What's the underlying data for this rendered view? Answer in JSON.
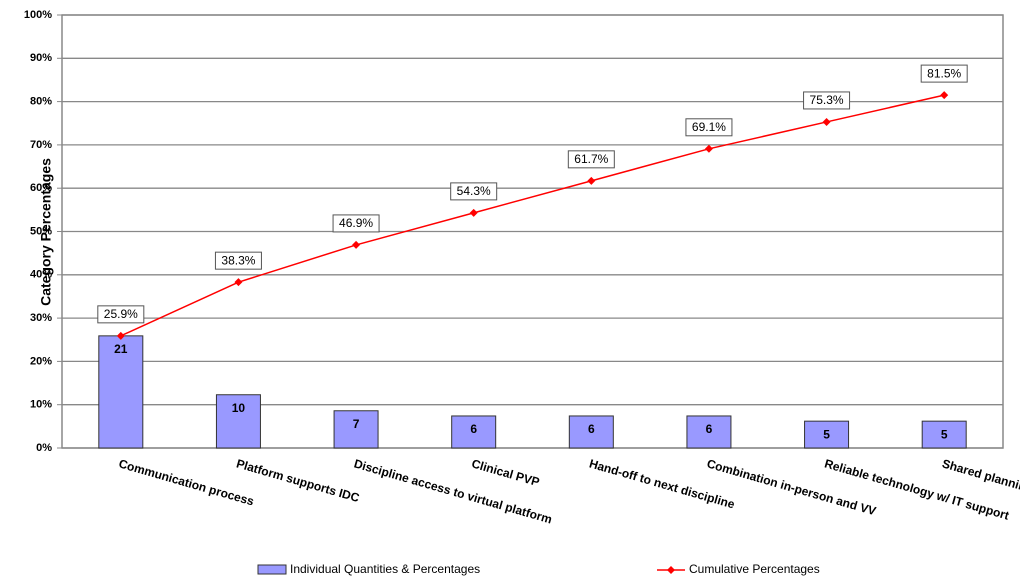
{
  "chart_data": {
    "type": "pareto",
    "y_label": "Category Percentages",
    "categories": [
      "Communication process",
      "Platform supports IDC",
      "Discipline access to virtual platform",
      "Clinical PVP",
      "Hand-off to next discipline",
      "Combination in-person and VV",
      "Reliable technology w/ IT support",
      "Shared planning form"
    ],
    "series": [
      {
        "name": "Individual Quantities & Percentages",
        "color": "#9999ff",
        "values": [
          25.9,
          12.3,
          8.6,
          7.4,
          7.4,
          7.4,
          6.2,
          6.2
        ],
        "counts": [
          21,
          10,
          7,
          6,
          6,
          6,
          5,
          5
        ]
      },
      {
        "name": "Cumulative Percentages",
        "color": "#ff0000",
        "values": [
          25.9,
          38.3,
          46.9,
          54.3,
          61.7,
          69.1,
          75.3,
          81.5
        ],
        "value_labels": [
          "25.9%",
          "38.3%",
          "46.9%",
          "54.3%",
          "61.7%",
          "69.1%",
          "75.3%",
          "81.5%"
        ]
      }
    ],
    "ylim": [
      0,
      100
    ],
    "yticks": [
      {
        "value": 0,
        "label": "0%"
      },
      {
        "value": 10,
        "label": "10%"
      },
      {
        "value": 20,
        "label": "20%"
      },
      {
        "value": 30,
        "label": "30%"
      },
      {
        "value": 40,
        "label": "40%"
      },
      {
        "value": 50,
        "label": "50%"
      },
      {
        "value": 60,
        "label": "60%"
      },
      {
        "value": 70,
        "label": "70%"
      },
      {
        "value": 80,
        "label": "80%"
      },
      {
        "value": 90,
        "label": "90%"
      },
      {
        "value": 100,
        "label": "100%"
      }
    ],
    "grid": true
  }
}
